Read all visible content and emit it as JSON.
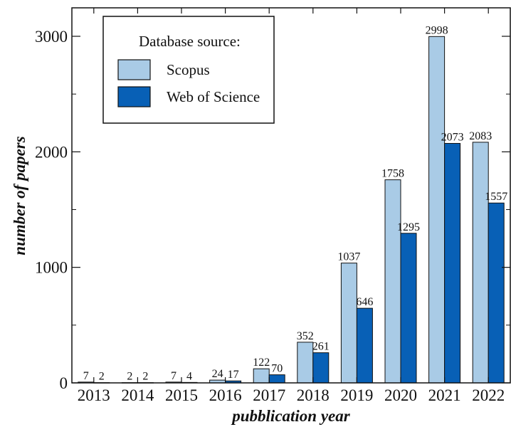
{
  "chart_data": {
    "type": "bar",
    "title": "",
    "xlabel": "pubblication year",
    "ylabel": "number of papers",
    "categories": [
      "2013",
      "2014",
      "2015",
      "2016",
      "2017",
      "2018",
      "2019",
      "2020",
      "2021",
      "2022"
    ],
    "series": [
      {
        "name": "Scopus",
        "values": [
          7,
          2,
          7,
          24,
          122,
          352,
          1037,
          1758,
          2998,
          2083
        ],
        "color": "#a9cbe6"
      },
      {
        "name": "Web of Science",
        "values": [
          2,
          2,
          4,
          17,
          70,
          261,
          646,
          1295,
          2073,
          1557
        ],
        "color": "#0860b6"
      }
    ],
    "ylim": [
      0,
      3250
    ],
    "yticks": [
      0,
      1000,
      2000,
      3000
    ],
    "grid": false,
    "legend": {
      "title": "Database source:",
      "position": "top-left"
    }
  }
}
